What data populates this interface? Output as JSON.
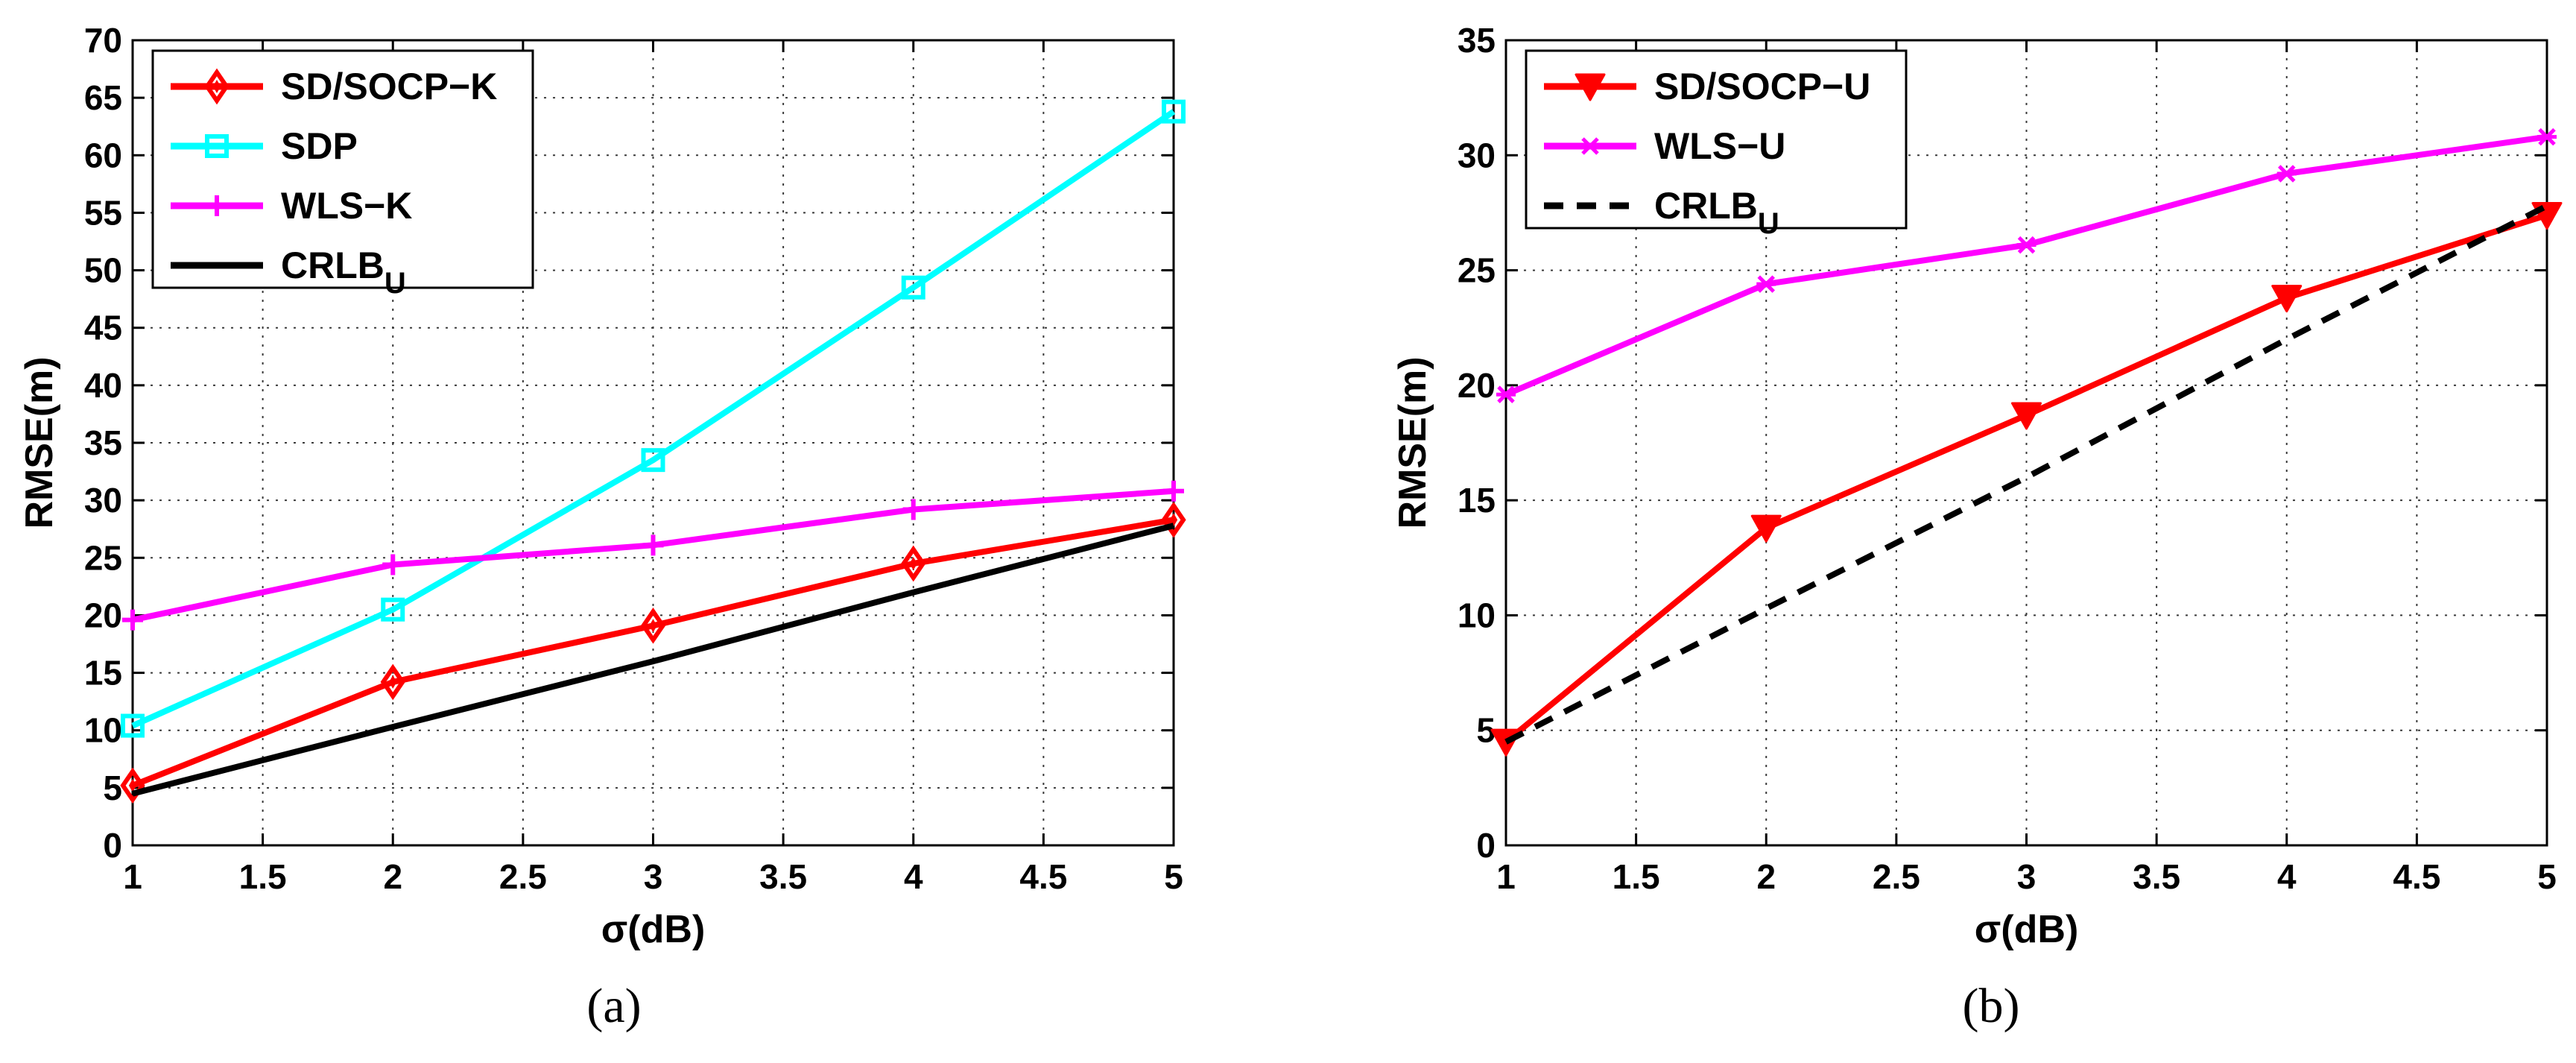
{
  "chart_data": [
    {
      "id": "a",
      "type": "line",
      "caption": "(a)",
      "xlabel": "σ(dB)",
      "ylabel": "RMSE(m)",
      "xlim": [
        1,
        5
      ],
      "ylim": [
        0,
        70
      ],
      "x": [
        1,
        2,
        3,
        4,
        5
      ],
      "xticks": [
        "1",
        "1.5",
        "2",
        "2.5",
        "3",
        "3.5",
        "4",
        "4.5",
        "5"
      ],
      "yticks": [
        "0",
        "5",
        "10",
        "15",
        "20",
        "25",
        "30",
        "35",
        "40",
        "45",
        "50",
        "55",
        "60",
        "65",
        "70"
      ],
      "grid": true,
      "legend_position": "top-left",
      "series": [
        {
          "name": "SD/SOCP−K",
          "color": "#ff0000",
          "marker": "diamond",
          "dash": "solid",
          "values": [
            5.2,
            14.2,
            19.1,
            24.5,
            28.3
          ]
        },
        {
          "name": "SDP",
          "color": "#00ffff",
          "marker": "square",
          "dash": "solid",
          "values": [
            10.4,
            20.5,
            33.5,
            48.5,
            63.8
          ]
        },
        {
          "name": "WLS−K",
          "color": "#ff00ff",
          "marker": "plus",
          "dash": "solid",
          "values": [
            19.6,
            24.4,
            26.1,
            29.2,
            30.8
          ]
        },
        {
          "name": "CRLB",
          "subscript": "U",
          "color": "#000000",
          "marker": "none",
          "dash": "solid",
          "values": [
            4.5,
            10.3,
            16.0,
            22.0,
            27.8
          ]
        }
      ]
    },
    {
      "id": "b",
      "type": "line",
      "caption": "(b)",
      "xlabel": "σ(dB)",
      "ylabel": "RMSE(m)",
      "xlim": [
        1,
        5
      ],
      "ylim": [
        0,
        35
      ],
      "x": [
        1,
        2,
        3,
        4,
        5
      ],
      "xticks": [
        "1",
        "1.5",
        "2",
        "2.5",
        "3",
        "3.5",
        "4",
        "4.5",
        "5"
      ],
      "yticks": [
        "0",
        "5",
        "10",
        "15",
        "20",
        "25",
        "30",
        "35"
      ],
      "grid": true,
      "legend_position": "top-left",
      "series": [
        {
          "name": "SD/SOCP−U",
          "color": "#ff0000",
          "marker": "triangle-down",
          "dash": "solid",
          "values": [
            4.5,
            13.8,
            18.7,
            23.8,
            27.4
          ]
        },
        {
          "name": "WLS−U",
          "color": "#ff00ff",
          "marker": "asterisk",
          "dash": "solid",
          "values": [
            19.6,
            24.4,
            26.1,
            29.2,
            30.8
          ]
        },
        {
          "name": "CRLB",
          "subscript": "U",
          "color": "#000000",
          "marker": "none",
          "dash": "dashed",
          "values": [
            4.5,
            10.3,
            16.0,
            22.0,
            27.8
          ]
        }
      ]
    }
  ]
}
